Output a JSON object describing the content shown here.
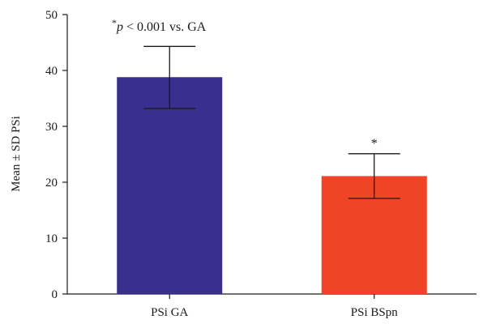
{
  "chart_data": {
    "type": "bar",
    "categories": [
      "PSi GA",
      "PSi BSpn"
    ],
    "values": [
      38.8,
      21.1
    ],
    "error_up": [
      44.3,
      25.1
    ],
    "error_down": [
      33.2,
      17.1
    ],
    "colors": [
      "#382f8f",
      "#ef4426"
    ],
    "ylabel": "Mean ± SD PSi",
    "xlabel": "",
    "ylim": [
      0,
      50
    ],
    "yticks": [
      0,
      10,
      20,
      30,
      40,
      50
    ],
    "bar_markers": [
      "",
      "*"
    ],
    "annotation": {
      "star": "*",
      "p_symbol": "p",
      "rest": " < 0.001 vs. GA"
    }
  }
}
